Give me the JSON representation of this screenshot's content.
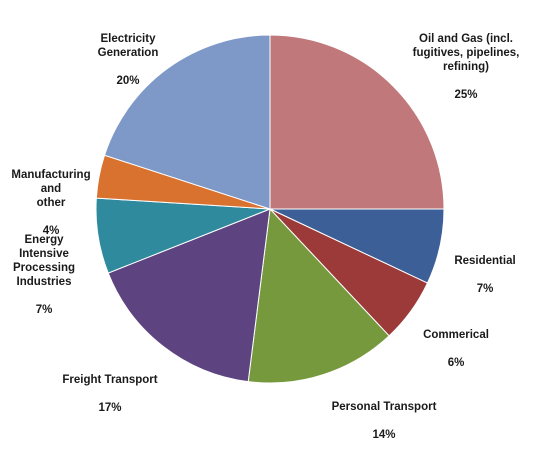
{
  "chart_data": {
    "type": "pie",
    "title": "",
    "start_angle_deg": 0,
    "direction": "clockwise",
    "slices": [
      {
        "label": "Oil and Gas (incl.\nfugitives, pipelines,\nrefining)",
        "value": 25,
        "value_label": "25%",
        "color": "#c0787a"
      },
      {
        "label": "Residential",
        "value": 7,
        "value_label": "7%",
        "color": "#3c5f97"
      },
      {
        "label": "Commerical",
        "value": 6,
        "value_label": "6%",
        "color": "#9b3a38"
      },
      {
        "label": "Personal Transport",
        "value": 14,
        "value_label": "14%",
        "color": "#76993e"
      },
      {
        "label": "Freight Transport",
        "value": 17,
        "value_label": "17%",
        "color": "#5d4480"
      },
      {
        "label": "Energy Intensive\nProcessing\nIndustries",
        "value": 7,
        "value_label": "7%",
        "color": "#2f8a9e"
      },
      {
        "label": "Manufacturing and\nother",
        "value": 4,
        "value_label": "4%",
        "color": "#d9722f"
      },
      {
        "label": "Electricity\nGeneration",
        "value": 20,
        "value_label": "20%",
        "color": "#7e99c8"
      }
    ]
  }
}
